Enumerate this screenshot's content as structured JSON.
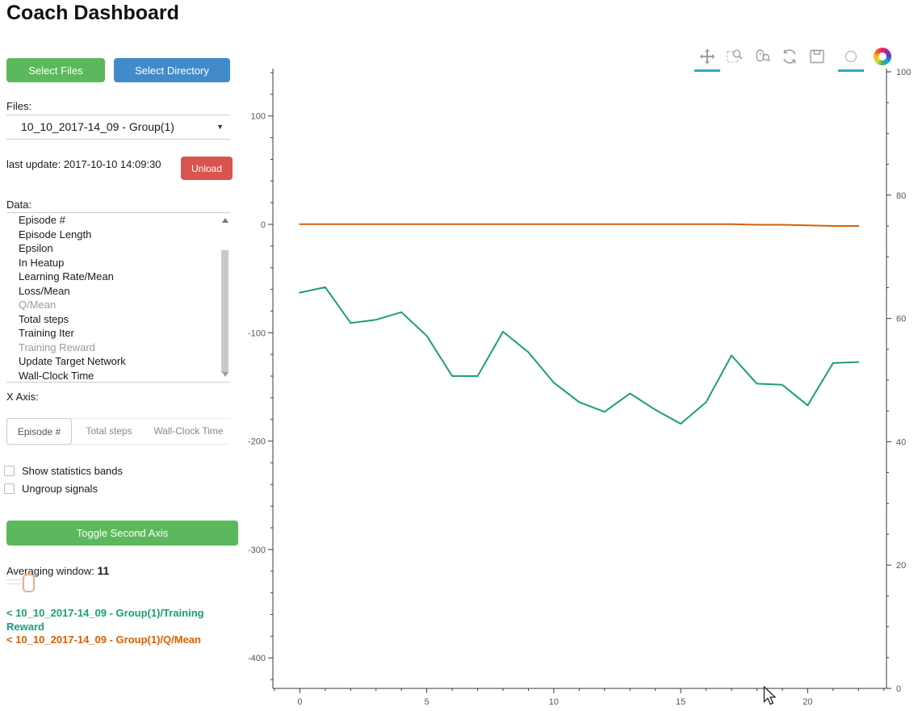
{
  "title": "Coach Dashboard",
  "sidebar": {
    "buttons": {
      "select_files": "Select Files",
      "select_directory": "Select Directory",
      "unload": "Unload",
      "toggle_second_axis": "Toggle Second Axis"
    },
    "files": {
      "label": "Files:",
      "selected": "10_10_2017-14_09 - Group(1)"
    },
    "last_update": "last update: 2017-10-10 14:09:30",
    "data_label": "Data:",
    "data_items": [
      {
        "label": "Episode #",
        "dimmed": false
      },
      {
        "label": "Episode Length",
        "dimmed": false
      },
      {
        "label": "Epsilon",
        "dimmed": false
      },
      {
        "label": "In Heatup",
        "dimmed": false
      },
      {
        "label": "Learning Rate/Mean",
        "dimmed": false
      },
      {
        "label": "Loss/Mean",
        "dimmed": false
      },
      {
        "label": "Q/Mean",
        "dimmed": true
      },
      {
        "label": "Total steps",
        "dimmed": false
      },
      {
        "label": "Training Iter",
        "dimmed": false
      },
      {
        "label": "Training Reward",
        "dimmed": true
      },
      {
        "label": "Update Target Network",
        "dimmed": false
      },
      {
        "label": "Wall-Clock Time",
        "dimmed": false
      }
    ],
    "x_axis_label": "X Axis:",
    "x_axis_tabs": [
      "Episode #",
      "Total steps",
      "Wall-Clock Time"
    ],
    "x_axis_active_tab": 0,
    "checkboxes": [
      {
        "label": "Show statistics bands",
        "checked": false
      },
      {
        "label": "Ungroup signals",
        "checked": false
      }
    ],
    "averaging": {
      "label": "Averaging window:",
      "value": "11"
    },
    "legend": [
      {
        "text": "< 10_10_2017-14_09 - Group(1)/Training Reward",
        "color": "#1b9e77"
      },
      {
        "text": "< 10_10_2017-14_09 - Group(1)/Q/Mean",
        "color": "#d95f02"
      }
    ]
  },
  "toolbar": {
    "tools": [
      "pan",
      "box-zoom",
      "wheel-zoom",
      "reset",
      "save",
      "hover",
      "bokeh-logo"
    ],
    "active": [
      "pan",
      "hover"
    ],
    "active_color": "#2aa7bd"
  },
  "chart_data": {
    "type": "line",
    "title": "",
    "xlabel": "",
    "ylabel": "",
    "grid": false,
    "x": [
      0,
      1,
      2,
      3,
      4,
      5,
      6,
      7,
      8,
      9,
      10,
      11,
      12,
      13,
      14,
      15,
      16,
      17,
      18,
      19,
      20,
      21,
      22
    ],
    "series": [
      {
        "name": "10_10_2017-14_09 - Group(1)/Training Reward",
        "color": "#1b9e77",
        "axis": "left",
        "values": [
          -63,
          -58,
          -91,
          -88,
          -81,
          -103,
          -140,
          -140,
          -99,
          -118,
          -146,
          -164,
          -173,
          -156,
          -171,
          -184,
          -164,
          -121,
          -147,
          -148,
          -167,
          -128,
          -127
        ]
      },
      {
        "name": "10_10_2017-14_09 - Group(1)/Q/Mean",
        "color": "#d95f02",
        "axis": "right",
        "values": [
          75.3,
          75.3,
          75.3,
          75.3,
          75.3,
          75.3,
          75.3,
          75.3,
          75.3,
          75.3,
          75.3,
          75.3,
          75.3,
          75.3,
          75.3,
          75.3,
          75.3,
          75.3,
          75.2,
          75.2,
          75.1,
          75.0,
          75.0
        ]
      }
    ],
    "x_axis": {
      "ticks": [
        0,
        5,
        10,
        15,
        20
      ],
      "minor_step": 1,
      "range": [
        -1,
        23
      ]
    },
    "left_axis": {
      "ticks": [
        100,
        0,
        -100,
        -200,
        -300,
        -400
      ],
      "minor_step": 20,
      "range": [
        -420,
        140
      ]
    },
    "right_axis": {
      "ticks": [
        100,
        80,
        60,
        40,
        20,
        0
      ],
      "minor_step": 5,
      "range": [
        0,
        100
      ]
    }
  }
}
